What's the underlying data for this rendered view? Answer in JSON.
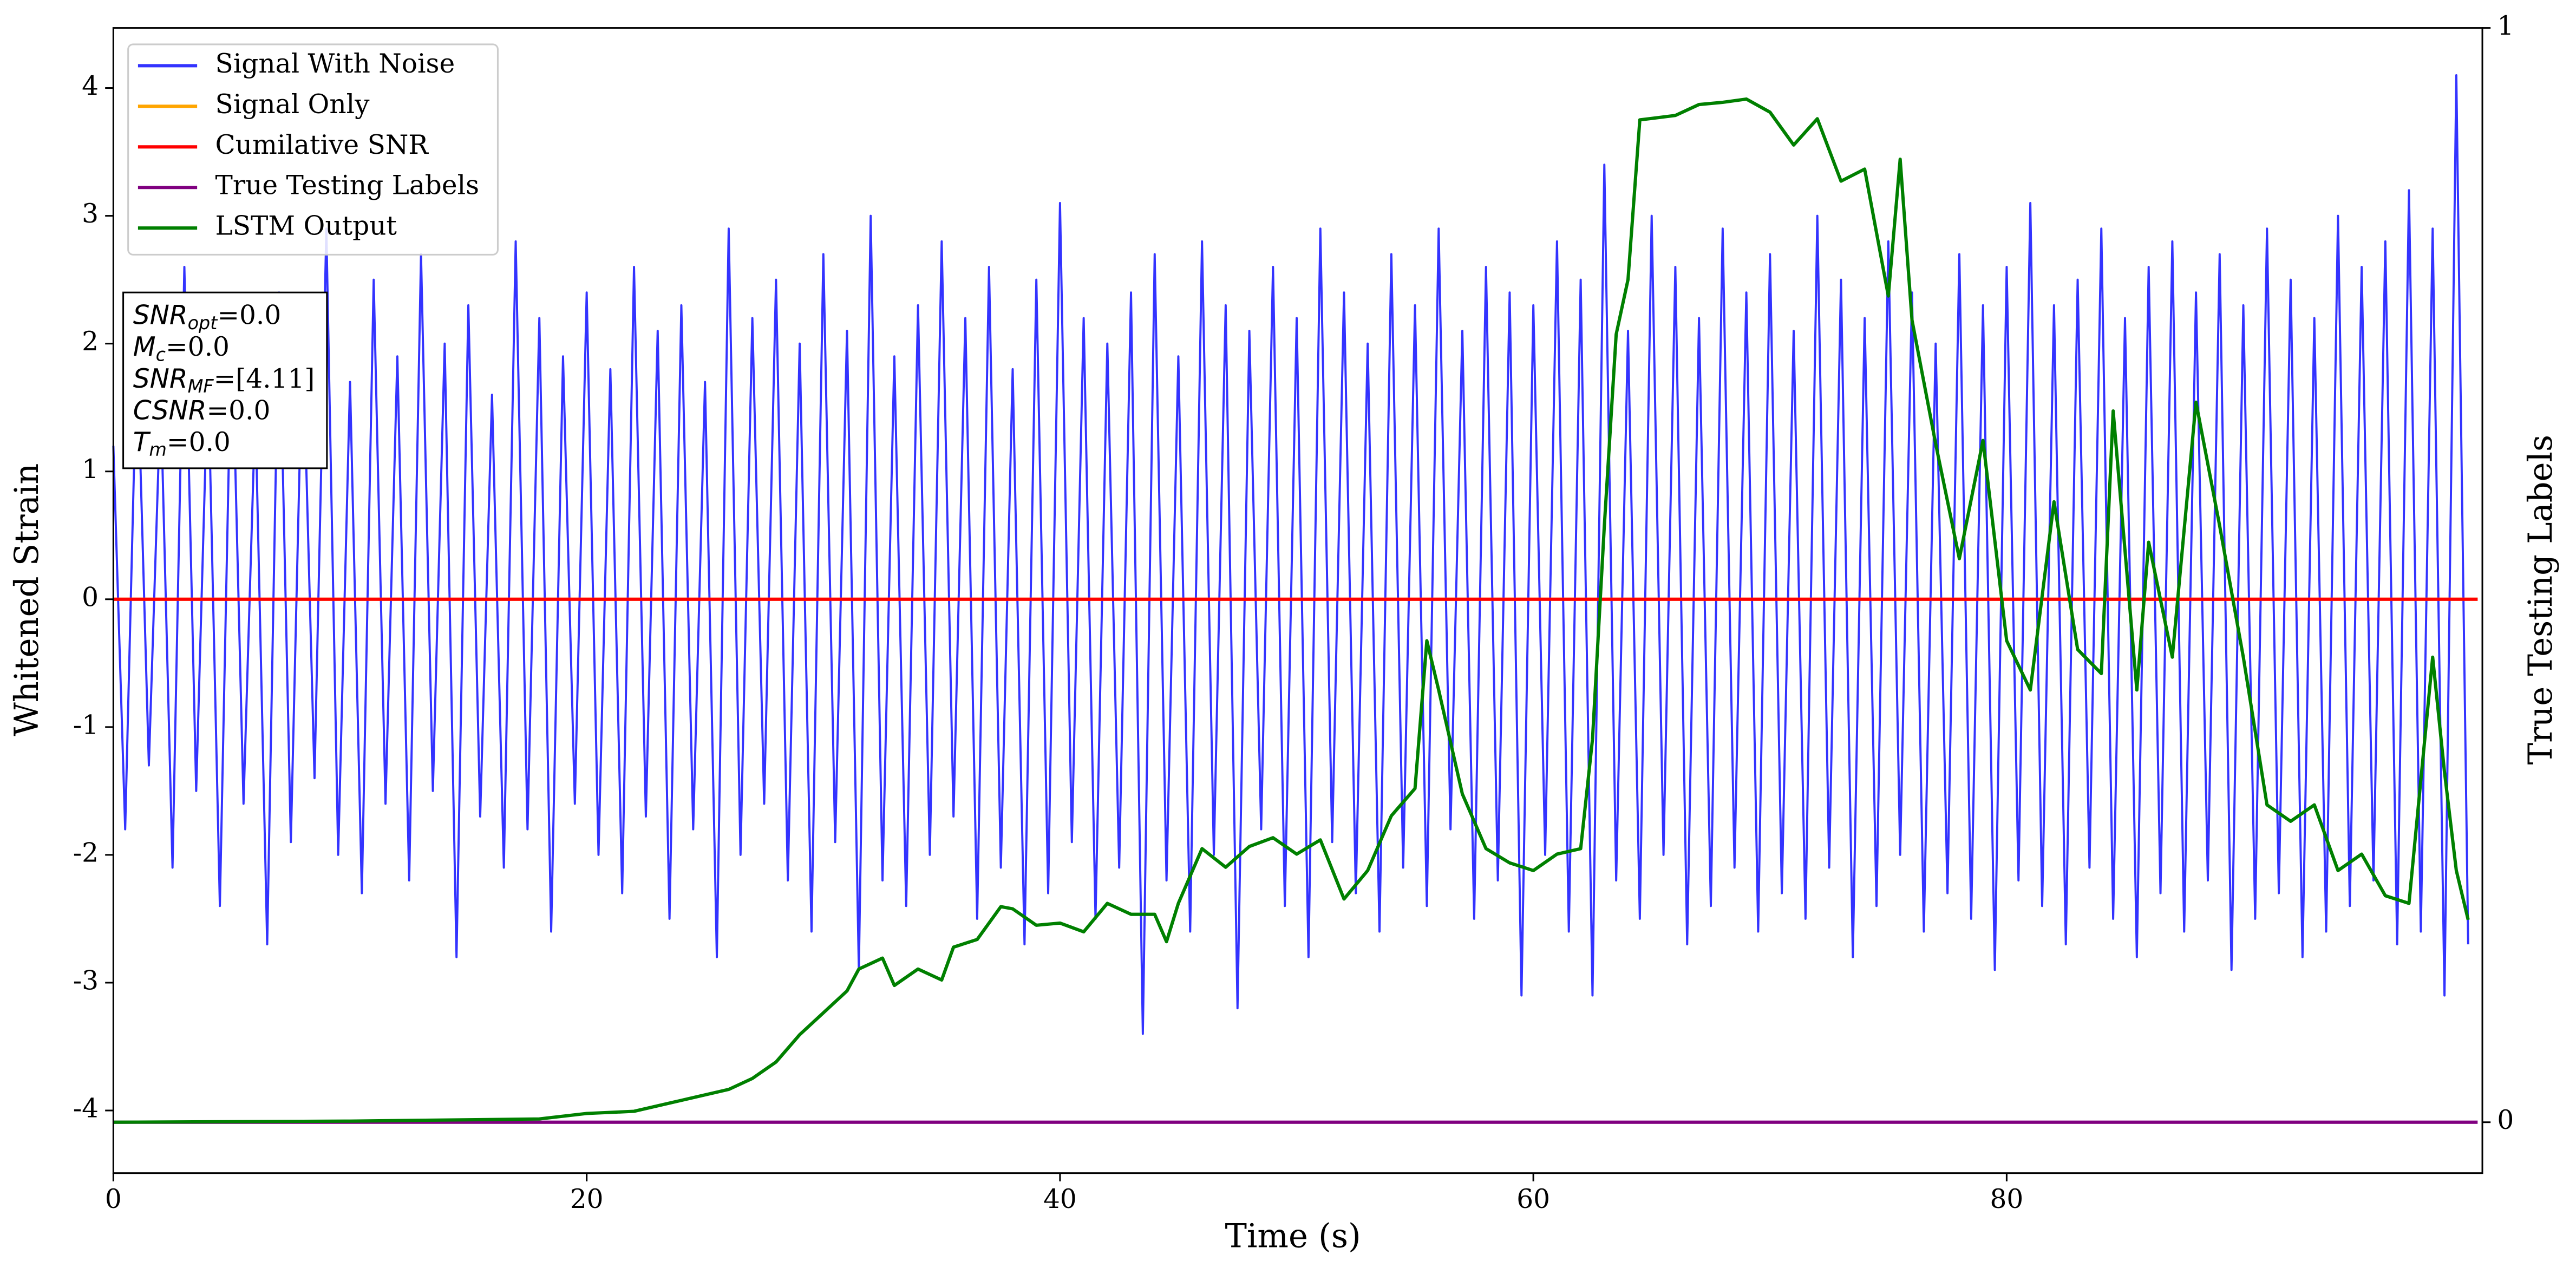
{
  "chart_data": {
    "type": "line",
    "xlabel": "Time (s)",
    "ylabel": "Whitened Strain",
    "y2label": "True Testing Labels",
    "xlim": [
      0,
      100.1
    ],
    "ylim": [
      -4.49,
      4.47
    ],
    "y2lim": [
      -0.0465,
      1
    ],
    "xticks": [
      0,
      20,
      40,
      60,
      80
    ],
    "yticks": [
      -4,
      -3,
      -2,
      -1,
      0,
      1,
      2,
      3,
      4
    ],
    "y2ticks": [
      0,
      1
    ],
    "legend": "upper left",
    "annotation": [
      {
        "text": "SNR",
        "sub": "opt",
        "value": "=0.0"
      },
      {
        "text": "M",
        "sub": "c",
        "value": "=0.0"
      },
      {
        "text": "SNR",
        "sub": "MF",
        "value": "=[4.11]"
      },
      {
        "text": "CSNR",
        "value": "=0.0"
      },
      {
        "text": "T",
        "sub": "m",
        "value": "=0.0"
      }
    ],
    "series": [
      {
        "name": "Signal With Noise",
        "color": "#3333ff",
        "x": [
          0,
          0.5,
          1,
          1.5,
          2,
          2.5,
          3,
          3.5,
          4,
          4.5,
          5,
          5.5,
          6,
          6.5,
          7,
          7.5,
          8,
          8.5,
          9,
          9.5,
          10,
          10.5,
          11,
          11.5,
          12,
          12.5,
          13,
          13.5,
          14,
          14.5,
          15,
          15.5,
          16,
          16.5,
          17,
          17.5,
          18,
          18.5,
          19,
          19.5,
          20,
          20.5,
          21,
          21.5,
          22,
          22.5,
          23,
          23.5,
          24,
          24.5,
          25,
          25.5,
          26,
          26.5,
          27,
          27.5,
          28,
          28.5,
          29,
          29.5,
          30,
          30.5,
          31,
          31.5,
          32,
          32.5,
          33,
          33.5,
          34,
          34.5,
          35,
          35.5,
          36,
          36.5,
          37,
          37.5,
          38,
          38.5,
          39,
          39.5,
          40,
          40.5,
          41,
          41.5,
          42,
          42.5,
          43,
          43.5,
          44,
          44.5,
          45,
          45.5,
          46,
          46.5,
          47,
          47.5,
          48,
          48.5,
          49,
          49.5,
          50,
          50.5,
          51,
          51.5,
          52,
          52.5,
          53,
          53.5,
          54,
          54.5,
          55,
          55.5,
          56,
          56.5,
          57,
          57.5,
          58,
          58.5,
          59,
          59.5,
          60,
          60.5,
          61,
          61.5,
          62,
          62.5,
          63,
          63.5,
          64,
          64.5,
          65,
          65.5,
          66,
          66.5,
          67,
          67.5,
          68,
          68.5,
          69,
          69.5,
          70,
          70.5,
          71,
          71.5,
          72,
          72.5,
          73,
          73.5,
          74,
          74.5,
          75,
          75.5,
          76,
          76.5,
          77,
          77.5,
          78,
          78.5,
          79,
          79.5,
          80,
          80.5,
          81,
          81.5,
          82,
          82.5,
          83,
          83.5,
          84,
          84.5,
          85,
          85.5,
          86,
          86.5,
          87,
          87.5,
          88,
          88.5,
          89,
          89.5,
          90,
          90.5,
          91,
          91.5,
          92,
          92.5,
          93,
          93.5,
          94,
          94.5,
          95,
          95.5,
          96,
          96.5,
          97,
          97.5,
          98,
          98.5,
          99,
          99.5
        ],
        "values": [
          1.2,
          -1.8,
          2.0,
          -1.3,
          1.6,
          -2.1,
          2.6,
          -1.5,
          1.8,
          -2.4,
          2.2,
          -1.6,
          1.5,
          -2.7,
          2.4,
          -1.9,
          2.1,
          -1.4,
          2.9,
          -2.0,
          1.7,
          -2.3,
          2.5,
          -1.6,
          1.9,
          -2.2,
          2.7,
          -1.5,
          2.0,
          -2.8,
          2.3,
          -1.7,
          1.6,
          -2.1,
          2.8,
          -1.8,
          2.2,
          -2.6,
          1.9,
          -1.6,
          2.4,
          -2.0,
          1.8,
          -2.3,
          2.6,
          -1.7,
          2.1,
          -2.5,
          2.3,
          -1.8,
          1.7,
          -2.8,
          2.9,
          -2.0,
          2.2,
          -1.6,
          2.5,
          -2.2,
          2.0,
          -2.6,
          2.7,
          -1.9,
          2.1,
          -2.9,
          3.0,
          -2.2,
          1.9,
          -2.4,
          2.3,
          -2.0,
          2.8,
          -1.7,
          2.2,
          -2.5,
          2.6,
          -2.1,
          1.8,
          -2.7,
          2.5,
          -2.3,
          3.1,
          -1.9,
          2.2,
          -2.5,
          2.0,
          -2.1,
          2.4,
          -3.4,
          2.7,
          -2.2,
          1.9,
          -2.6,
          2.8,
          -2.0,
          2.3,
          -3.2,
          2.1,
          -1.8,
          2.6,
          -2.4,
          2.2,
          -2.8,
          2.9,
          -1.9,
          2.4,
          -2.3,
          2.0,
          -2.6,
          2.7,
          -2.1,
          2.3,
          -2.4,
          2.9,
          -1.8,
          2.1,
          -2.5,
          2.6,
          -2.2,
          2.4,
          -3.1,
          2.3,
          -2.0,
          2.8,
          -2.6,
          2.5,
          -3.1,
          3.4,
          -2.2,
          2.1,
          -2.5,
          3.0,
          -2.0,
          2.6,
          -2.7,
          2.2,
          -2.4,
          2.9,
          -2.1,
          2.4,
          -2.6,
          2.7,
          -2.3,
          2.1,
          -2.5,
          3.0,
          -2.1,
          2.5,
          -2.8,
          2.2,
          -2.4,
          2.8,
          -2.0,
          2.4,
          -2.6,
          2.0,
          -2.3,
          2.7,
          -2.5,
          2.3,
          -2.9,
          2.6,
          -2.2,
          3.1,
          -2.4,
          2.3,
          -2.7,
          2.5,
          -2.1,
          2.9,
          -2.5,
          2.2,
          -2.8,
          2.6,
          -2.3,
          2.8,
          -2.6,
          2.4,
          -2.2,
          2.7,
          -2.9,
          2.3,
          -2.5,
          2.9,
          -2.3,
          2.5,
          -2.8,
          2.2,
          -2.6,
          3.0,
          -2.4,
          2.6,
          -2.2,
          2.8,
          -2.7,
          3.2,
          -2.6,
          2.9,
          -3.1,
          4.1,
          -2.7
        ]
      },
      {
        "name": "Signal Only",
        "color": "#ffa500",
        "x": [
          0,
          99.9
        ],
        "values": [
          0,
          0
        ]
      },
      {
        "name": "Cumilative SNR",
        "color": "#ff0000",
        "x": [
          0,
          99.9
        ],
        "values": [
          0,
          0
        ]
      },
      {
        "name": "True Testing Labels",
        "color": "#800080",
        "axis": "y2",
        "x": [
          0,
          99.9
        ],
        "values": [
          0,
          0
        ]
      },
      {
        "name": "LSTM Output",
        "color": "#008000",
        "axis": "y2",
        "x": [
          0,
          10,
          18,
          20,
          22,
          24,
          26,
          27,
          28,
          29,
          30,
          31,
          31.5,
          32.5,
          33,
          34,
          35,
          35.5,
          36.5,
          37.5,
          38,
          39,
          40,
          41,
          42,
          43,
          44,
          44.5,
          45,
          46,
          47,
          48,
          49,
          50,
          51,
          52,
          53,
          54,
          55,
          55.5,
          56,
          57,
          58,
          59,
          60,
          61,
          62,
          62.5,
          63,
          63.5,
          64,
          64.5,
          66,
          67,
          68,
          69,
          70,
          71,
          72,
          73,
          74,
          75,
          75.5,
          76,
          77,
          78,
          79,
          80,
          81,
          82,
          83,
          84,
          84.5,
          85.5,
          86,
          87,
          88,
          89,
          90,
          91,
          92,
          93,
          94,
          95,
          96,
          97,
          98,
          98.5,
          99,
          99.5
        ],
        "values": [
          0,
          0.001,
          0.003,
          0.008,
          0.01,
          0.02,
          0.03,
          0.04,
          0.055,
          0.08,
          0.1,
          0.12,
          0.14,
          0.15,
          0.125,
          0.14,
          0.13,
          0.16,
          0.167,
          0.197,
          0.195,
          0.18,
          0.182,
          0.174,
          0.2,
          0.19,
          0.19,
          0.165,
          0.2,
          0.25,
          0.233,
          0.252,
          0.26,
          0.245,
          0.258,
          0.204,
          0.23,
          0.28,
          0.305,
          0.44,
          0.395,
          0.3,
          0.25,
          0.237,
          0.23,
          0.245,
          0.25,
          0.35,
          0.545,
          0.72,
          0.77,
          0.916,
          0.92,
          0.93,
          0.932,
          0.935,
          0.923,
          0.893,
          0.917,
          0.86,
          0.871,
          0.755,
          0.88,
          0.733,
          0.62,
          0.515,
          0.623,
          0.44,
          0.395,
          0.567,
          0.432,
          0.41,
          0.65,
          0.395,
          0.53,
          0.425,
          0.658,
          0.545,
          0.425,
          0.29,
          0.275,
          0.29,
          0.23,
          0.245,
          0.207,
          0.2,
          0.425,
          0.32,
          0.23,
          0.185
        ]
      }
    ]
  }
}
